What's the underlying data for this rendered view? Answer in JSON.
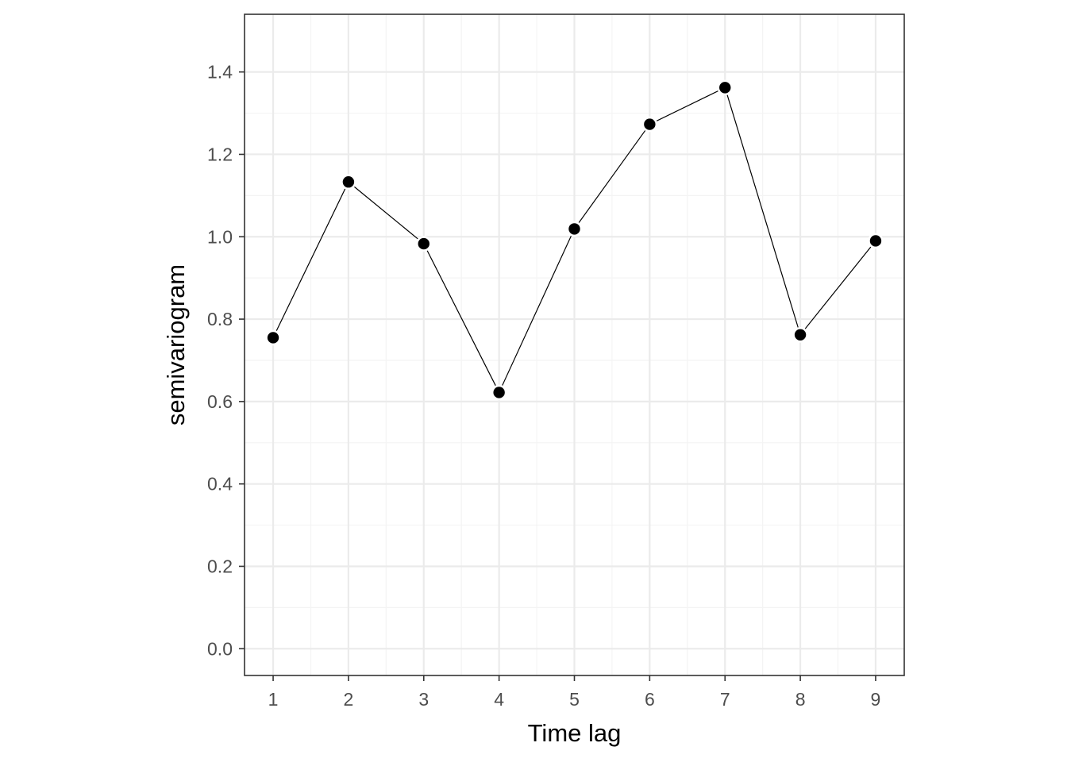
{
  "chart_data": {
    "type": "line",
    "title": "",
    "xlabel": "Time lag",
    "ylabel": "semivariogram",
    "x": [
      1,
      2,
      3,
      4,
      5,
      6,
      7,
      8,
      9
    ],
    "series": [
      {
        "values": [
          0.755,
          1.133,
          0.983,
          0.622,
          1.019,
          1.273,
          1.362,
          0.762,
          0.99
        ]
      }
    ],
    "xlim": [
      0.62,
      9.38
    ],
    "ylim": [
      -0.065,
      1.54
    ],
    "x_ticks": [
      "1",
      "2",
      "3",
      "4",
      "5",
      "6",
      "7",
      "8",
      "9"
    ],
    "y_ticks": [
      "0.0",
      "0.2",
      "0.4",
      "0.6",
      "0.8",
      "1.0",
      "1.2",
      "1.4"
    ],
    "grid": true,
    "legend": "none",
    "colors": {
      "line": "#000000",
      "point": "#000000",
      "point_outline": "#ffffff",
      "grid_major": "#ebebeb",
      "grid_minor": "#f4f4f4",
      "panel_border": "#333333"
    }
  }
}
